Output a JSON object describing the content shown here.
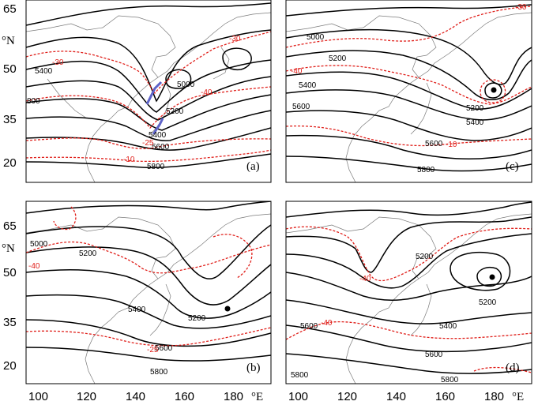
{
  "axes": {
    "x_ticks": [
      "100",
      "120",
      "140",
      "160",
      "180"
    ],
    "x_unit": "°E",
    "y_ticks": [
      "65",
      "50",
      "35",
      "20"
    ],
    "y_unit": "°N"
  },
  "panels": [
    {
      "label": "(a)",
      "height_labels": [
        "5400",
        "5000",
        "5200",
        "5400",
        "5600",
        "5800",
        "800"
      ],
      "temp_labels": [
        "-30",
        "-30",
        "-40",
        "-25",
        "-10"
      ]
    },
    {
      "label": "(c)",
      "height_labels": [
        "5000",
        "5200",
        "5400",
        "5200",
        "5400",
        "5600",
        "5600",
        "5800"
      ],
      "temp_labels": [
        "-30",
        "-40",
        "-10"
      ]
    },
    {
      "label": "(b)",
      "height_labels": [
        "5000",
        "5200",
        "5400",
        "5200",
        "5600",
        "5800"
      ],
      "temp_labels": [
        "-40",
        "-25"
      ]
    },
    {
      "label": "(d)",
      "height_labels": [
        "5200",
        "5200",
        "5400",
        "5600",
        "5600",
        "5800",
        "5800"
      ],
      "temp_labels": [
        "-40",
        "-40"
      ]
    }
  ]
}
